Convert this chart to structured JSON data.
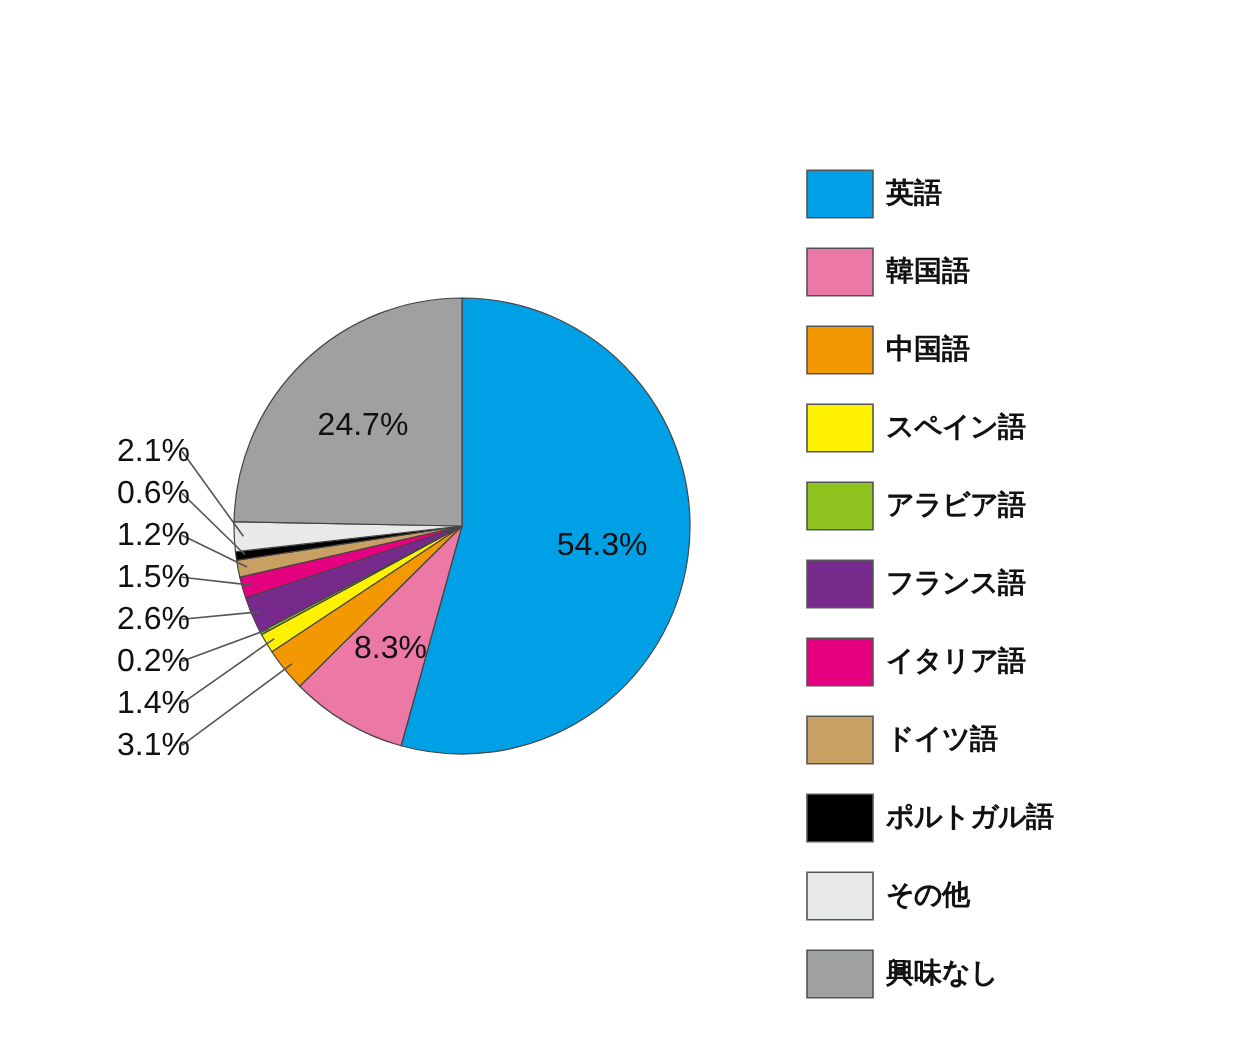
{
  "chart_data": {
    "type": "pie",
    "categories": [
      "英語",
      "韓国語",
      "中国語",
      "スペイン語",
      "アラビア語",
      "フランス語",
      "イタリア語",
      "ドイツ語",
      "ポルトガル語",
      "その他",
      "興味なし"
    ],
    "values": [
      54.3,
      8.3,
      3.1,
      1.4,
      0.2,
      2.6,
      1.5,
      1.2,
      0.6,
      2.1,
      24.7
    ],
    "value_labels": [
      "54.3%",
      "8.3%",
      "3.1%",
      "1.4%",
      "0.2%",
      "2.6%",
      "1.5%",
      "1.2%",
      "0.6%",
      "2.1%",
      "24.7%"
    ],
    "colors": [
      "#00a0e6",
      "#eb78a5",
      "#f39800",
      "#fff100",
      "#8fc31f",
      "#772a8c",
      "#e4007f",
      "#c9a063",
      "#000000",
      "#e8e9e9",
      "#9fa0a0"
    ],
    "legend": "right"
  }
}
